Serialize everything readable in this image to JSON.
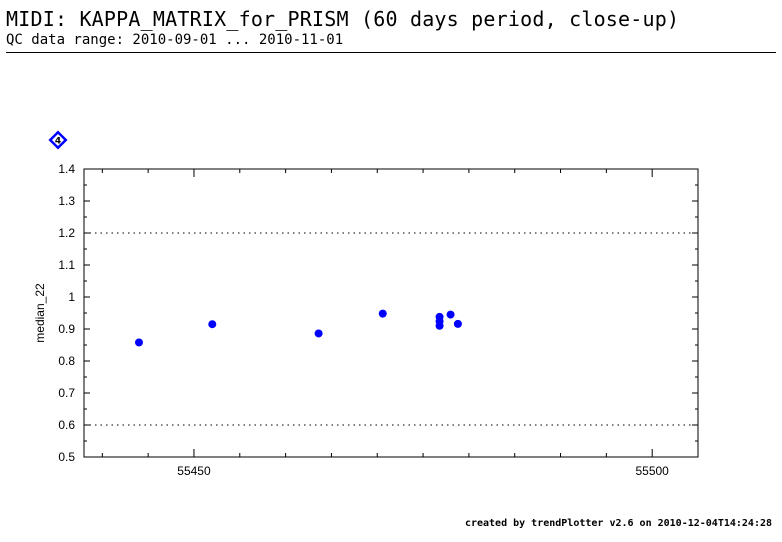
{
  "header": {
    "title": "MIDI: KAPPA_MATRIX_for_PRISM (60 days period, close-up)",
    "subtitle": "QC data range: 2010-09-01 ... 2010-11-01"
  },
  "marker_label": "4",
  "footer": "created by trendPlotter v2.6 on 2010-12-04T14:24:28",
  "colors": {
    "points": "#0000ff",
    "marker": "#0000ff",
    "axes": "#000000"
  },
  "chart_data": {
    "type": "scatter",
    "title": "",
    "xlabel": "",
    "ylabel": "median_22",
    "xlim": [
      55438,
      55505
    ],
    "ylim": [
      0.5,
      1.4
    ],
    "xticks": [
      55450,
      55500
    ],
    "yticks": [
      0.5,
      0.6,
      0.7,
      0.8,
      0.9,
      1.0,
      1.1,
      1.2,
      1.3,
      1.4
    ],
    "yticklabels": [
      "0.5",
      "0.6",
      "0.7",
      "0.8",
      "0.9",
      "1",
      "1.1",
      "1.2",
      "1.3",
      "1.4"
    ],
    "reference_lines": [
      0.6,
      1.2
    ],
    "grid": false,
    "series": [
      {
        "x": [
          55444.0,
          55452.0,
          55463.6,
          55470.6,
          55476.8,
          55476.8,
          55476.8,
          55478.0,
          55478.8
        ],
        "y": [
          0.858,
          0.915,
          0.886,
          0.948,
          0.938,
          0.924,
          0.91,
          0.945,
          0.916
        ]
      }
    ]
  }
}
